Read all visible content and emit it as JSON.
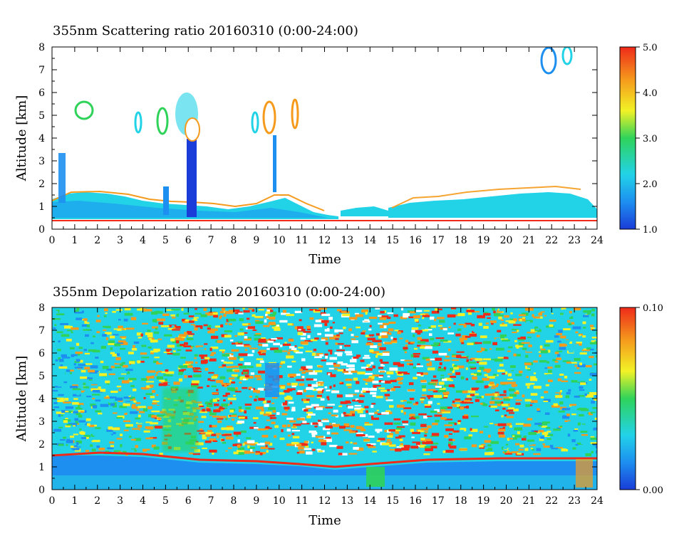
{
  "chart_data": [
    {
      "type": "heatmap",
      "title": "355nm Scattering ratio  20160310 (0:00-24:00)",
      "xlabel": "Time",
      "ylabel": "Altitude [km]",
      "xlim": [
        0,
        24
      ],
      "ylim": [
        0,
        8
      ],
      "x_ticks": [
        "0",
        "1",
        "2",
        "3",
        "4",
        "5",
        "6",
        "7",
        "8",
        "9",
        "10",
        "11",
        "12",
        "13",
        "14",
        "15",
        "16",
        "17",
        "18",
        "19",
        "20",
        "21",
        "22",
        "23",
        "24"
      ],
      "y_ticks": [
        "0",
        "1",
        "2",
        "3",
        "4",
        "5",
        "6",
        "7",
        "8"
      ],
      "colorbar": {
        "min": 1.0,
        "max": 5.0,
        "tick_labels": [
          "1.0",
          "2.0",
          "3.0",
          "4.0",
          "5.0"
        ]
      },
      "colormap": [
        "#1a3cd8",
        "#1d8ff0",
        "#22d3e8",
        "#2fd35a",
        "#f2f226",
        "#f59a1c",
        "#ee2a1a"
      ],
      "background": "#ffffff"
    },
    {
      "type": "heatmap",
      "title": "355nm Depolarization ratio  20160310 (0:00-24:00)",
      "xlabel": "Time",
      "ylabel": "Altitude [km]",
      "xlim": [
        0,
        24
      ],
      "ylim": [
        0,
        8
      ],
      "x_ticks": [
        "0",
        "1",
        "2",
        "3",
        "4",
        "5",
        "6",
        "7",
        "8",
        "9",
        "10",
        "11",
        "12",
        "13",
        "14",
        "15",
        "16",
        "17",
        "18",
        "19",
        "20",
        "21",
        "22",
        "23",
        "24"
      ],
      "y_ticks": [
        "0",
        "1",
        "2",
        "3",
        "4",
        "5",
        "6",
        "7",
        "8"
      ],
      "colorbar": {
        "min": 0.0,
        "max": 0.1,
        "tick_labels": [
          "0.00",
          "0.10"
        ]
      },
      "colormap": [
        "#1a3cd8",
        "#1d8ff0",
        "#22d3e8",
        "#2fd35a",
        "#f2f226",
        "#f59a1c",
        "#ee2a1a"
      ],
      "background": "#ffffff"
    }
  ]
}
